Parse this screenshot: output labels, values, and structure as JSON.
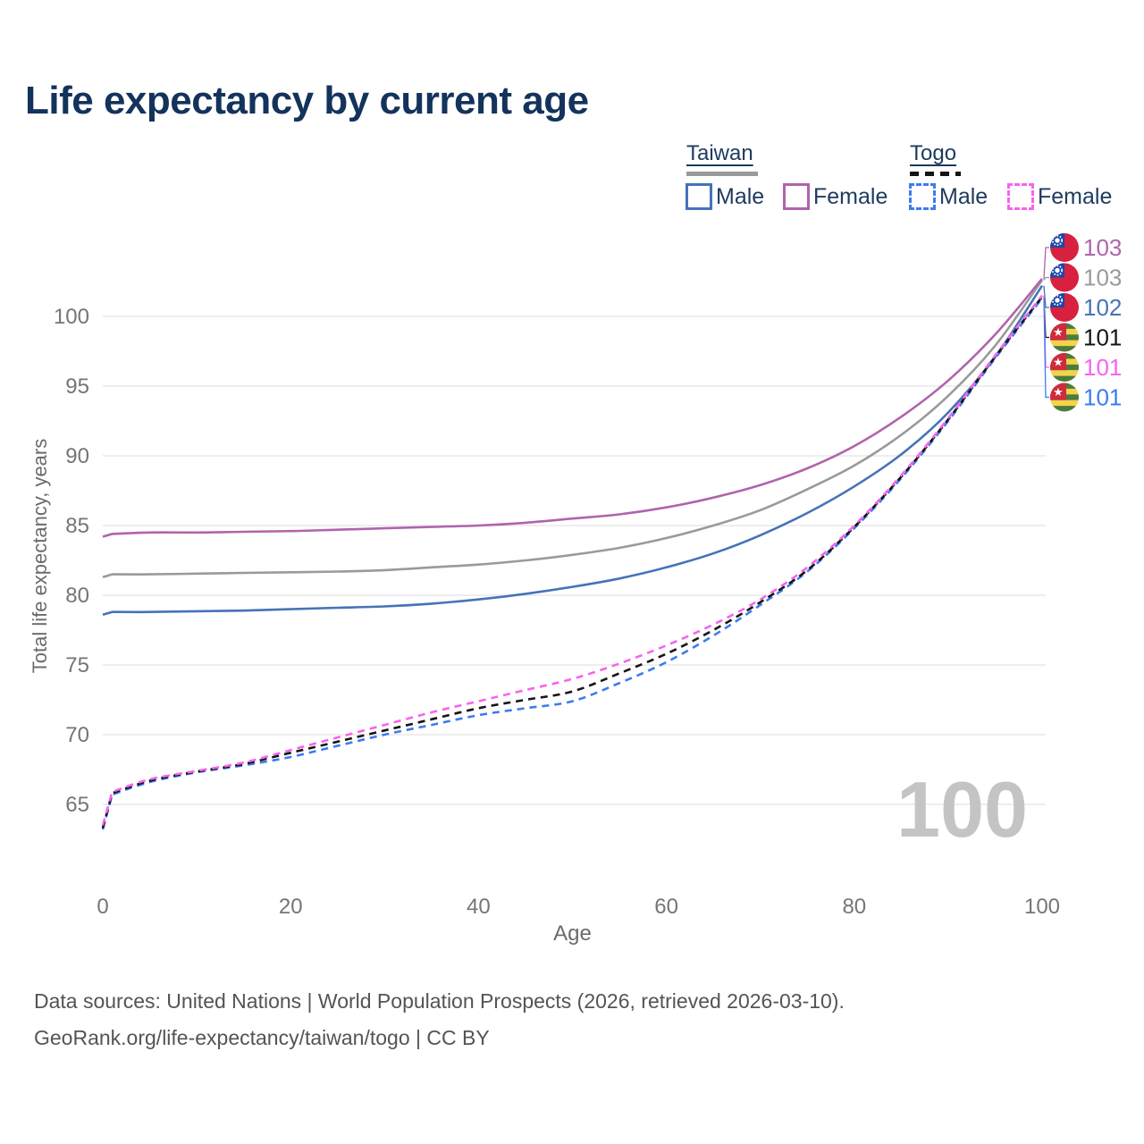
{
  "title": "Life expectancy by current age",
  "legend": {
    "groups": [
      {
        "label": "Taiwan",
        "underline_style": "solid",
        "underline_color": "#9a9a9a",
        "items": [
          {
            "label": "Male",
            "color": "#4573b8",
            "dashed": false
          },
          {
            "label": "Female",
            "color": "#b163ac",
            "dashed": false
          }
        ]
      },
      {
        "label": "Togo",
        "underline_style": "dashed",
        "underline_color": "#151515",
        "items": [
          {
            "label": "Male",
            "color": "#3d7bf0",
            "dashed": true
          },
          {
            "label": "Female",
            "color": "#f763ef",
            "dashed": true
          }
        ]
      }
    ]
  },
  "chart_data": {
    "type": "line",
    "title": "Life expectancy by current age",
    "xlabel": "Age",
    "ylabel": "Total life expectancy, years",
    "xlim": [
      0,
      100
    ],
    "ylim": [
      62.5,
      103.5
    ],
    "x_ticks": [
      0,
      20,
      40,
      60,
      80,
      100
    ],
    "y_ticks": [
      65,
      70,
      75,
      80,
      85,
      90,
      95,
      100
    ],
    "grid": "horizontal",
    "legend_position": "top-right",
    "watermark": "100",
    "x": [
      0,
      1,
      5,
      10,
      15,
      20,
      25,
      30,
      35,
      40,
      45,
      50,
      55,
      60,
      65,
      70,
      75,
      80,
      85,
      90,
      95,
      100
    ],
    "series": [
      {
        "name": "Taiwan Female",
        "slug": "taiwan-female",
        "color": "#b163ac",
        "style": "solid",
        "end_label": "103",
        "values": [
          84.2,
          84.4,
          84.5,
          84.5,
          84.55,
          84.6,
          84.7,
          84.8,
          84.9,
          85.0,
          85.2,
          85.5,
          85.8,
          86.3,
          87.0,
          87.9,
          89.1,
          90.7,
          92.8,
          95.4,
          98.7,
          102.7
        ]
      },
      {
        "name": "Taiwan (both sexes)",
        "slug": "taiwan-both",
        "color": "#9a9a9a",
        "style": "solid",
        "end_label": "103",
        "values": [
          81.3,
          81.5,
          81.5,
          81.55,
          81.6,
          81.65,
          81.7,
          81.8,
          82.0,
          82.2,
          82.5,
          82.9,
          83.4,
          84.1,
          85.0,
          86.1,
          87.6,
          89.3,
          91.5,
          94.3,
          97.9,
          102.6
        ]
      },
      {
        "name": "Taiwan Male",
        "slug": "taiwan-male",
        "color": "#4573b8",
        "style": "solid",
        "end_label": "102",
        "values": [
          78.6,
          78.8,
          78.8,
          78.85,
          78.9,
          79.0,
          79.1,
          79.2,
          79.4,
          79.7,
          80.1,
          80.6,
          81.2,
          82.0,
          83.0,
          84.3,
          85.9,
          87.8,
          90.1,
          93.1,
          97.1,
          102.2
        ]
      },
      {
        "name": "Togo (both sexes)",
        "slug": "togo-both",
        "color": "#151515",
        "style": "dashed",
        "end_label": "101",
        "values": [
          63.3,
          65.8,
          66.7,
          67.35,
          67.9,
          68.7,
          69.5,
          70.3,
          71.1,
          71.9,
          72.5,
          73.1,
          74.4,
          75.8,
          77.5,
          79.5,
          81.8,
          84.9,
          88.5,
          92.6,
          97.1,
          101.4
        ]
      },
      {
        "name": "Togo Female",
        "slug": "togo-female",
        "color": "#f763ef",
        "style": "dashed",
        "end_label": "101",
        "values": [
          63.5,
          65.9,
          66.8,
          67.4,
          68.0,
          68.9,
          69.8,
          70.7,
          71.6,
          72.4,
          73.2,
          74.0,
          75.1,
          76.4,
          77.9,
          79.7,
          82.0,
          85.0,
          88.6,
          92.7,
          97.2,
          101.5
        ]
      },
      {
        "name": "Togo Male",
        "slug": "togo-male",
        "color": "#3d7bf0",
        "style": "dashed",
        "end_label": "101",
        "values": [
          63.2,
          65.7,
          66.6,
          67.3,
          67.8,
          68.4,
          69.2,
          70.0,
          70.7,
          71.4,
          71.9,
          72.4,
          73.7,
          75.2,
          77.1,
          79.3,
          81.7,
          84.8,
          88.4,
          92.5,
          97.0,
          101.3
        ]
      }
    ]
  },
  "end_labels": [
    {
      "value": "103",
      "color": "#b163ac",
      "flag": "taiwan",
      "flag_icon": "taiwan-flag-icon",
      "series": "taiwan-female"
    },
    {
      "value": "103",
      "color": "#9a9a9a",
      "flag": "taiwan",
      "flag_icon": "taiwan-flag-icon",
      "series": "taiwan-both"
    },
    {
      "value": "102",
      "color": "#4573b8",
      "flag": "taiwan",
      "flag_icon": "taiwan-flag-icon",
      "series": "taiwan-male"
    },
    {
      "value": "101",
      "color": "#151515",
      "flag": "togo",
      "flag_icon": "togo-flag-icon",
      "series": "togo-both"
    },
    {
      "value": "101",
      "color": "#f763ef",
      "flag": "togo",
      "flag_icon": "togo-flag-icon",
      "series": "togo-female"
    },
    {
      "value": "101",
      "color": "#3d7bf0",
      "flag": "togo",
      "flag_icon": "togo-flag-icon",
      "series": "togo-male"
    }
  ],
  "footer": {
    "line1": "Data sources: United Nations | World Population Prospects (2026, retrieved 2026-03-10).",
    "line2": "GeoRank.org/life-expectancy/taiwan/togo | CC BY"
  },
  "colors": {
    "title_text": "#14335c",
    "legend_text": "#1e3a5f",
    "tick_text": "#757575",
    "axis_title_text": "#6b6b6b",
    "footer_text": "#545454",
    "gridline": "#e9e9e9",
    "watermark": "#c4c4c4",
    "flag_taiwan_red": "#d7213f",
    "flag_taiwan_blue": "#1c48a8",
    "flag_togo_green": "#4d7c3a",
    "flag_togo_yellow": "#f3d34c",
    "flag_togo_red": "#d02a3d"
  }
}
